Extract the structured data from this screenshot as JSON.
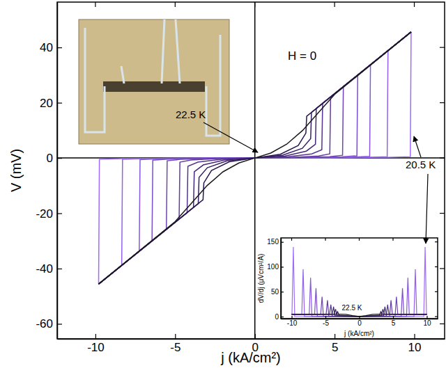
{
  "chart_data": [
    {
      "type": "line",
      "x_label": "j (kA/cm²)",
      "y_label": "V (mV)",
      "xlim": [
        -12.4,
        11.9
      ],
      "ylim": [
        -65.4,
        56.4
      ],
      "xticks": [
        -10,
        -5,
        0,
        5,
        10
      ],
      "yticks": [
        -60,
        -40,
        -20,
        0,
        20,
        40
      ],
      "annotations": [
        "H = 0",
        "22.5 K",
        "20.5 K"
      ],
      "series": [
        {
          "color": "#9f6bff",
          "x": [
            -9.8,
            -9.75,
            -8.3,
            -4.9,
            0,
            4.9,
            8.3,
            9.75,
            9.8
          ],
          "values": [
            -45.6,
            -0.5,
            -0.25,
            -0.08,
            0,
            0.08,
            0.25,
            0.5,
            45.6
          ]
        },
        {
          "color": "#9361ee",
          "x": [
            -9.8,
            -8.35,
            -8.3,
            -7.05,
            -4.15,
            0,
            4.15,
            7.05,
            8.3,
            8.35,
            9.8
          ],
          "values": [
            -45.6,
            -38.8,
            -0.5,
            -0.25,
            -0.08,
            0,
            0.08,
            0.25,
            0.5,
            38.8,
            45.6
          ]
        },
        {
          "color": "#8757dc",
          "x": [
            -9.8,
            -7.25,
            -7.2,
            -6.12,
            -3.6,
            0,
            3.6,
            6.12,
            7.2,
            7.25,
            9.8
          ],
          "values": [
            -45.6,
            -33.7,
            -0.6,
            -0.3,
            -0.09,
            0,
            0.09,
            0.3,
            0.6,
            33.7,
            45.6
          ]
        },
        {
          "color": "#7b4ec9",
          "x": [
            -9.8,
            -6.45,
            -6.4,
            -5.44,
            -3.2,
            0,
            3.2,
            5.44,
            6.4,
            6.45,
            9.8
          ],
          "values": [
            -45.6,
            -30.0,
            -0.8,
            -0.4,
            -0.12,
            0,
            0.12,
            0.4,
            0.8,
            30.0,
            45.6
          ]
        },
        {
          "color": "#6f45b6",
          "x": [
            -9.8,
            -5.55,
            -5.5,
            -4.68,
            -2.75,
            0,
            2.75,
            4.68,
            5.5,
            5.55,
            9.8
          ],
          "values": [
            -45.6,
            -25.8,
            -1,
            -0.5,
            -0.15,
            0,
            0.15,
            0.5,
            1,
            25.8,
            45.6
          ]
        },
        {
          "color": "#623ca2",
          "x": [
            -9.8,
            -4.75,
            -4.7,
            -4.0,
            -2.35,
            0,
            2.35,
            4.0,
            4.7,
            4.75,
            9.8
          ],
          "values": [
            -45.6,
            -22.1,
            -1.5,
            -0.75,
            -0.23,
            0,
            0.23,
            0.75,
            1.5,
            22.1,
            45.6
          ]
        },
        {
          "color": "#55338e",
          "x": [
            -9.8,
            -4.25,
            -4.2,
            -3.57,
            -2.1,
            0,
            2.1,
            3.57,
            4.2,
            4.25,
            9.8
          ],
          "values": [
            -45.6,
            -19.8,
            -3,
            -1.5,
            -0.45,
            0,
            0.45,
            1.5,
            3,
            19.8,
            45.6
          ]
        },
        {
          "color": "#46297a",
          "x": [
            -9.8,
            -3.85,
            -3.8,
            -3.23,
            -1.9,
            0,
            1.9,
            3.23,
            3.8,
            3.85,
            9.8
          ],
          "values": [
            -45.6,
            -17.9,
            -5,
            -2.5,
            -0.75,
            0,
            0.75,
            2.5,
            5,
            17.9,
            45.6
          ]
        },
        {
          "color": "#372065",
          "x": [
            -9.8,
            -3.55,
            -3.5,
            -2.98,
            -1.75,
            0,
            1.75,
            2.98,
            3.5,
            3.55,
            9.8
          ],
          "values": [
            -45.6,
            -16.5,
            -7,
            -3.5,
            -1.05,
            0,
            1.05,
            3.5,
            7,
            16.5,
            45.6
          ]
        },
        {
          "color": "#28164f",
          "x": [
            -9.8,
            -3.25,
            -3.2,
            -2.72,
            -1.6,
            0,
            1.6,
            2.72,
            3.2,
            3.25,
            9.8
          ],
          "values": [
            -45.6,
            -15.1,
            -9,
            -4.5,
            -1.35,
            0,
            1.35,
            4.5,
            9,
            15.1,
            45.6
          ]
        },
        {
          "color": "#1a1a1a",
          "x": [
            -9.8,
            -5,
            -4,
            -3,
            -2,
            -1,
            0,
            1,
            2,
            3,
            4,
            5,
            9.8
          ],
          "values": [
            -45.6,
            -23,
            -16.5,
            -10,
            -5,
            -1.8,
            0,
            1.8,
            5,
            10,
            16.5,
            23,
            45.6
          ]
        }
      ]
    },
    {
      "type": "line",
      "x_label": "j (kA/cm²)",
      "y_label": "dV/dj (μVcm²/A)",
      "xlim": [
        -11.6,
        11.6
      ],
      "ylim": [
        -4,
        158
      ],
      "xticks": [
        -10,
        -5,
        0,
        5,
        10
      ],
      "yticks": [
        0,
        50,
        100,
        150
      ],
      "annotations": [
        "22.5 K"
      ],
      "series": [
        {
          "color": "#9f6bff",
          "x": [
            -10,
            -9.95,
            -9.75,
            -9.55,
            0,
            9.55,
            9.75,
            9.95,
            10
          ],
          "values": [
            5,
            5,
            140,
            0.3,
            0,
            0.3,
            140,
            5,
            5
          ]
        },
        {
          "color": "#9361ee",
          "x": [
            -10,
            -8.5,
            -8.3,
            -8.1,
            0,
            8.1,
            8.3,
            8.5,
            10
          ],
          "values": [
            5,
            5,
            95,
            0.3,
            0,
            0.3,
            95,
            5,
            5
          ]
        },
        {
          "color": "#8757dc",
          "x": [
            -10,
            -7.4,
            -7.2,
            -7.0,
            0,
            7.0,
            7.2,
            7.4,
            10
          ],
          "values": [
            5,
            5,
            78,
            0.4,
            0,
            0.4,
            78,
            5,
            5
          ]
        },
        {
          "color": "#7b4ec9",
          "x": [
            -10,
            -6.6,
            -6.4,
            -6.2,
            0,
            6.2,
            6.4,
            6.6,
            10
          ],
          "values": [
            5,
            5,
            57,
            0.5,
            0,
            0.5,
            57,
            5,
            5
          ]
        },
        {
          "color": "#6f45b6",
          "x": [
            -10,
            -5.7,
            -5.5,
            -5.3,
            0,
            5.3,
            5.5,
            5.7,
            10
          ],
          "values": [
            5,
            5,
            40,
            0.7,
            0,
            0.7,
            40,
            5,
            5
          ]
        },
        {
          "color": "#623ca2",
          "x": [
            -10,
            -4.9,
            -4.7,
            -4.5,
            0,
            4.5,
            4.7,
            4.9,
            10
          ],
          "values": [
            5,
            5,
            33,
            1,
            0,
            1,
            33,
            5,
            5
          ]
        },
        {
          "color": "#55338e",
          "x": [
            -10,
            -4.4,
            -4.2,
            -4.0,
            0,
            4.0,
            4.2,
            4.4,
            10
          ],
          "values": [
            5,
            5,
            24,
            1.5,
            0,
            1.5,
            24,
            5,
            5
          ]
        },
        {
          "color": "#46297a",
          "x": [
            -10,
            -4.0,
            -3.8,
            -3.6,
            0,
            3.6,
            3.8,
            4.0,
            10
          ],
          "values": [
            5,
            5,
            20,
            2,
            0,
            2,
            20,
            5,
            5
          ]
        },
        {
          "color": "#372065",
          "x": [
            -10,
            -3.7,
            -3.5,
            -3.3,
            0,
            3.3,
            3.5,
            3.7,
            10
          ],
          "values": [
            5,
            5,
            15,
            2.5,
            0,
            2.5,
            15,
            5,
            5
          ]
        },
        {
          "color": "#28164f",
          "x": [
            -10,
            -3.4,
            -3.2,
            -3.0,
            0,
            3.0,
            3.2,
            3.4,
            10
          ],
          "values": [
            5,
            5,
            10,
            3,
            0,
            3,
            10,
            5,
            5
          ]
        },
        {
          "color": "#1a1a1a",
          "x": [
            -10,
            -5,
            -3,
            -2,
            -1,
            0,
            1,
            2,
            3,
            5,
            10
          ],
          "values": [
            5,
            5,
            5,
            4.5,
            2,
            0.5,
            2,
            4.5,
            5,
            5,
            5
          ]
        }
      ]
    }
  ]
}
